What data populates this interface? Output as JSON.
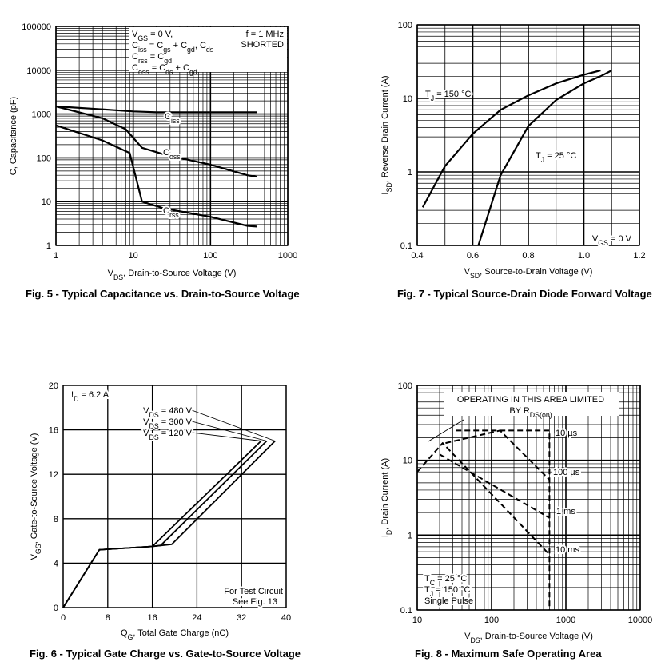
{
  "figures": {
    "fig5_caption": "Fig. 5 - Typical Capacitance vs. Drain-to-Source Voltage",
    "fig7_caption": "Fig. 7 - Typical Source-Drain Diode Forward Voltage",
    "fig6_caption": "Fig. 6 - Typical Gate Charge vs. Gate-to-Source Voltage",
    "fig8_caption": "Fig. 8 - Maximum Safe Operating Area"
  },
  "chart_data": [
    {
      "id": "fig5",
      "type": "line",
      "title": "",
      "xlabel": "VDS, Drain-to-Source Voltage (V)",
      "ylabel": "C, Capacitance (pF)",
      "xscale": "log",
      "yscale": "log",
      "xlim": [
        1,
        1000
      ],
      "ylim": [
        1,
        100000
      ],
      "xticks": [
        "1",
        "10",
        "100",
        "1000"
      ],
      "yticks": [
        "1",
        "10",
        "100",
        "1000",
        "10000",
        "100000"
      ],
      "grid": true,
      "annotations": [
        "VGS = 0 V,",
        "Ciss = Cgs + Cgd, Cds",
        "Crss = Cgd",
        "Coss = Cds + Cgd",
        "f = 1 MHz",
        "SHORTED"
      ],
      "series": [
        {
          "name": "Ciss",
          "x": [
            1,
            5,
            10,
            20,
            50,
            100,
            400
          ],
          "y": [
            1500,
            1250,
            1150,
            1100,
            1100,
            1100,
            1100
          ]
        },
        {
          "name": "Coss",
          "x": [
            1,
            4,
            8,
            13,
            25,
            100,
            300,
            400
          ],
          "y": [
            1500,
            800,
            450,
            170,
            120,
            70,
            40,
            37
          ]
        },
        {
          "name": "Crss",
          "x": [
            1,
            4,
            9,
            13,
            25,
            100,
            300,
            400
          ],
          "y": [
            550,
            250,
            130,
            10,
            7,
            4.5,
            2.8,
            2.7
          ]
        }
      ]
    },
    {
      "id": "fig7",
      "type": "line",
      "title": "",
      "xlabel": "VSD, Source-to-Drain Voltage (V)",
      "ylabel": "ISD, Reverse Drain Current (A)",
      "yscale": "log",
      "xlim": [
        0.4,
        1.2
      ],
      "ylim": [
        0.1,
        100
      ],
      "xticks": [
        "0.4",
        "0.6",
        "0.8",
        "1.0",
        "1.2"
      ],
      "yticks": [
        "0.1",
        "1",
        "10",
        "100"
      ],
      "grid": true,
      "annotations": [
        "VGS = 0 V"
      ],
      "series": [
        {
          "name": "TJ = 150 °C",
          "x": [
            0.42,
            0.5,
            0.6,
            0.7,
            0.8,
            0.9,
            1.0,
            1.06
          ],
          "y": [
            0.33,
            1.2,
            3.3,
            7.0,
            11,
            16,
            21,
            24
          ]
        },
        {
          "name": "TJ = 25 °C",
          "x": [
            0.62,
            0.7,
            0.8,
            0.9,
            1.0,
            1.06,
            1.1
          ],
          "y": [
            0.1,
            0.9,
            4.2,
            9.5,
            16,
            20,
            24
          ]
        }
      ]
    },
    {
      "id": "fig6",
      "type": "line",
      "title": "",
      "xlabel": "QG, Total Gate Charge (nC)",
      "ylabel": "VGS, Gate-to-Source Voltage (V)",
      "xlim": [
        0,
        40
      ],
      "ylim": [
        0,
        20
      ],
      "xticks": [
        "0",
        "8",
        "16",
        "24",
        "32",
        "40"
      ],
      "yticks": [
        "0",
        "4",
        "8",
        "12",
        "16",
        "20"
      ],
      "grid": true,
      "annotations": [
        "ID = 6.2 A",
        "For Test Circuit",
        "See Fig. 13"
      ],
      "series": [
        {
          "name": "VDS = 120 V",
          "x": [
            0,
            6.5,
            16,
            35.5
          ],
          "y": [
            0,
            5.2,
            5.5,
            15
          ]
        },
        {
          "name": "VDS = 300 V",
          "x": [
            0,
            6.5,
            16,
            17.5,
            36.5
          ],
          "y": [
            0,
            5.2,
            5.5,
            5.6,
            15
          ]
        },
        {
          "name": "VDS = 480 V",
          "x": [
            0,
            6.5,
            16,
            19.5,
            38
          ],
          "y": [
            0,
            5.2,
            5.5,
            5.7,
            15
          ]
        }
      ]
    },
    {
      "id": "fig8",
      "type": "line",
      "title": "",
      "xlabel": "VDS, Drain-to-Source Voltage (V)",
      "ylabel": "ID, Drain Current (A)",
      "xscale": "log",
      "yscale": "log",
      "xlim": [
        10,
        10000
      ],
      "ylim": [
        0.1,
        100
      ],
      "xticks": [
        "10",
        "100",
        "1000",
        "10000"
      ],
      "yticks": [
        "0.1",
        "1",
        "10",
        "100"
      ],
      "grid": true,
      "annotations": [
        "OPERATING IN THIS AREA LIMITED",
        "BY RDS(on)",
        "TC = 25 °C",
        "TJ = 150 °C",
        "Single Pulse"
      ],
      "series": [
        {
          "name": "10 µs",
          "x": [
            33,
            600,
            600
          ],
          "y": [
            25,
            25,
            0.1
          ]
        },
        {
          "name": "100 µs",
          "x": [
            24,
            130,
            600
          ],
          "y": [
            17,
            25,
            5.5
          ]
        },
        {
          "name": "1 ms",
          "x": [
            20,
            600
          ],
          "y": [
            12,
            1.7
          ]
        },
        {
          "name": "10 ms",
          "x": [
            10,
            22,
            600
          ],
          "y": [
            7,
            17,
            0.55
          ]
        }
      ]
    }
  ]
}
